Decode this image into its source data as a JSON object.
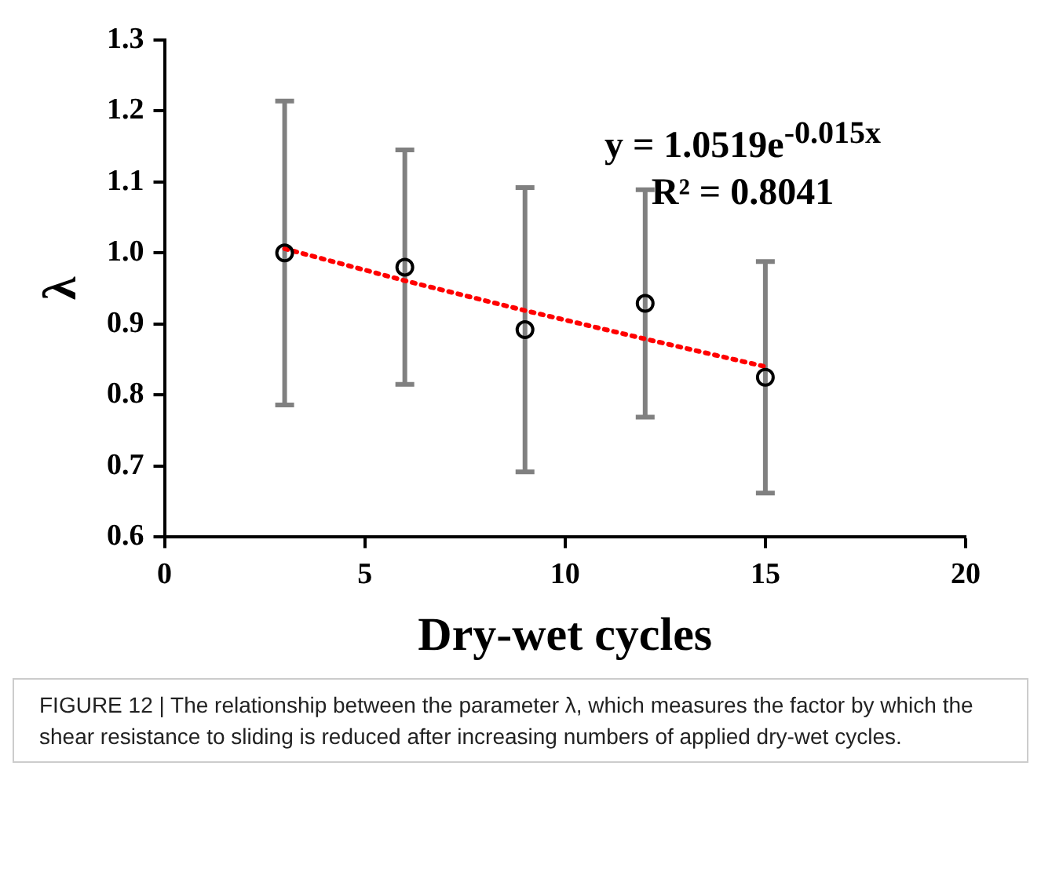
{
  "chart_data": {
    "type": "scatter",
    "xlabel": "Dry-wet cycles",
    "ylabel": "λ",
    "x": [
      3,
      6,
      9,
      12,
      15
    ],
    "series": [
      {
        "color": "#000000",
        "marker": "circle",
        "values": [
          1.0,
          0.98,
          0.892,
          0.929,
          0.825
        ],
        "errors": [
          0.214,
          0.165,
          0.2,
          0.16,
          0.163
        ]
      },
      {
        "type": "line",
        "color": "#ff0000",
        "line_style": "dotted",
        "marker": "none",
        "x": [
          3,
          6,
          9,
          12,
          15
        ],
        "values": [
          1.006,
          0.961,
          0.919,
          0.879,
          0.84
        ]
      }
    ],
    "xlim": [
      0,
      20
    ],
    "xticks": [
      0,
      5,
      10,
      15,
      20
    ],
    "ylim": [
      0.6,
      1.3
    ],
    "yticks": [
      0.6,
      0.7,
      0.8,
      0.9,
      {
        "value": 1,
        "label": "1.0"
      },
      1.1,
      1.2,
      1.3
    ],
    "grid": false,
    "annotations": [
      "y = 1.0519e$^{-0.015x}$",
      "R² = 0.8041",
      "FIGURE 12 | The relationship between the parameter λ, which measures the factor by which the shear resistance to sliding is reduced after increasing numbers of applied dry-wet cycles."
    ]
  }
}
